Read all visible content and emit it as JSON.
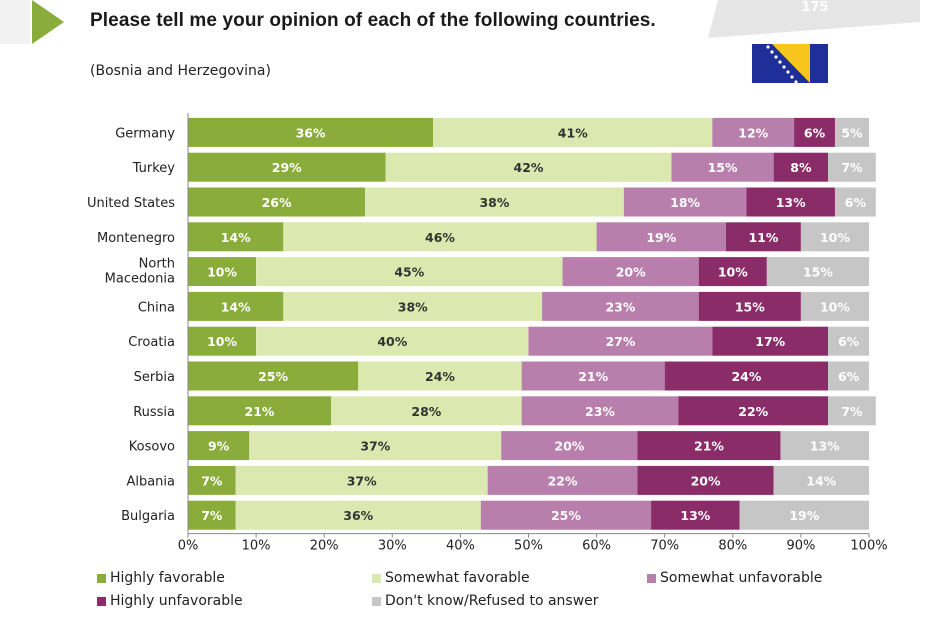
{
  "header": {
    "title": "Please tell me your opinion of each of the following countries.",
    "subtitle": "(Bosnia and Herzegovina)",
    "page_number": "175"
  },
  "colors": {
    "accent": "#8aac3b",
    "highly_favorable": "#8aac3b",
    "somewhat_favorable": "#dbe9b0",
    "somewhat_unfavorable": "#b97fac",
    "highly_unfavorable": "#8a2c68",
    "dont_know": "#c6c6c6"
  },
  "flag_icon": "bosnia-herzegovina-flag-icon",
  "chart_data": {
    "type": "bar",
    "orientation": "horizontal",
    "stacked": true,
    "categories": [
      "Germany",
      "Turkey",
      "United States",
      "Montenegro",
      "North Macedonia",
      "China",
      "Croatia",
      "Serbia",
      "Russia",
      "Kosovo",
      "Albania",
      "Bulgaria"
    ],
    "series": [
      {
        "name": "Highly favorable",
        "values": [
          36,
          29,
          26,
          14,
          10,
          14,
          10,
          25,
          21,
          9,
          7,
          7
        ]
      },
      {
        "name": "Somewhat favorable",
        "values": [
          41,
          42,
          38,
          46,
          45,
          38,
          40,
          24,
          28,
          37,
          37,
          36
        ]
      },
      {
        "name": "Somewhat unfavorable",
        "values": [
          12,
          15,
          18,
          19,
          20,
          23,
          27,
          21,
          23,
          20,
          22,
          25
        ]
      },
      {
        "name": "Highly unfavorable",
        "values": [
          6,
          8,
          13,
          11,
          10,
          15,
          17,
          24,
          22,
          21,
          20,
          13
        ]
      },
      {
        "name": "Don't know/Refused to answer",
        "values": [
          5,
          7,
          6,
          10,
          15,
          10,
          6,
          6,
          7,
          13,
          14,
          19
        ]
      }
    ],
    "xlim": [
      0,
      100
    ],
    "xticks": [
      "0%",
      "10%",
      "20%",
      "30%",
      "40%",
      "50%",
      "60%",
      "70%",
      "80%",
      "90%",
      "100%"
    ],
    "value_suffix": "%",
    "legend_position": "bottom",
    "grid": false
  }
}
